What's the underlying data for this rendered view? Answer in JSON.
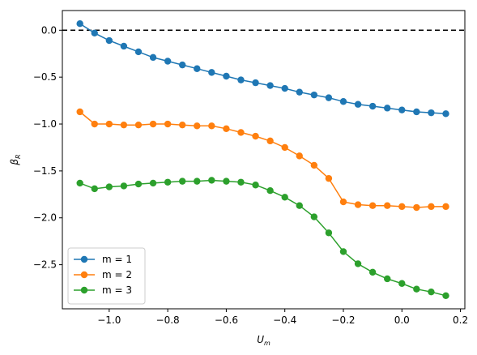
{
  "chart_data": {
    "type": "line",
    "title": "",
    "xlabel": {
      "main": "U",
      "sub": "m"
    },
    "ylabel": {
      "main": "β",
      "sub": "R"
    },
    "xlim": [
      -1.16,
      0.215
    ],
    "ylim": [
      -2.97,
      0.21
    ],
    "xticks": [
      -1.0,
      -0.8,
      -0.6,
      -0.4,
      -0.2,
      0.0,
      0.2
    ],
    "xtick_labels": [
      "−1.0",
      "−0.8",
      "−0.6",
      "−0.4",
      "−0.2",
      "0.0",
      "0.2"
    ],
    "yticks": [
      0.0,
      -0.5,
      -1.0,
      -1.5,
      -2.0,
      -2.5
    ],
    "ytick_labels": [
      "0.0",
      "−0.5",
      "−1.0",
      "−1.5",
      "−2.0",
      "−2.5"
    ],
    "reference_line": {
      "y": 0.0,
      "style": "dashed",
      "color": "#000000"
    },
    "grid": false,
    "legend_position": "lower-left",
    "x": [
      -1.1,
      -1.05,
      -1.0,
      -0.95,
      -0.9,
      -0.85,
      -0.8,
      -0.75,
      -0.7,
      -0.65,
      -0.6,
      -0.55,
      -0.5,
      -0.45,
      -0.4,
      -0.35,
      -0.3,
      -0.25,
      -0.2,
      -0.15,
      -0.1,
      -0.05,
      0.0,
      0.05,
      0.1,
      0.15
    ],
    "series": [
      {
        "name": "m = 1",
        "color": "#1f77b4",
        "values": [
          0.07,
          -0.03,
          -0.11,
          -0.17,
          -0.23,
          -0.29,
          -0.33,
          -0.37,
          -0.41,
          -0.45,
          -0.49,
          -0.53,
          -0.56,
          -0.59,
          -0.62,
          -0.66,
          -0.69,
          -0.72,
          -0.76,
          -0.79,
          -0.81,
          -0.83,
          -0.85,
          -0.87,
          -0.88,
          -0.89
        ]
      },
      {
        "name": "m = 2",
        "color": "#ff7f0e",
        "values": [
          -0.87,
          -1.0,
          -1.0,
          -1.01,
          -1.01,
          -1.0,
          -1.0,
          -1.01,
          -1.02,
          -1.02,
          -1.05,
          -1.09,
          -1.13,
          -1.18,
          -1.25,
          -1.34,
          -1.44,
          -1.58,
          -1.83,
          -1.86,
          -1.87,
          -1.87,
          -1.88,
          -1.89,
          -1.88,
          -1.88
        ]
      },
      {
        "name": "m = 3",
        "color": "#2ca02c",
        "values": [
          -1.63,
          -1.69,
          -1.67,
          -1.66,
          -1.64,
          -1.63,
          -1.62,
          -1.61,
          -1.61,
          -1.6,
          -1.61,
          -1.62,
          -1.65,
          -1.71,
          -1.78,
          -1.87,
          -1.99,
          -2.16,
          -2.36,
          -2.49,
          -2.58,
          -2.65,
          -2.7,
          -2.76,
          -2.79,
          -2.83
        ]
      }
    ]
  }
}
